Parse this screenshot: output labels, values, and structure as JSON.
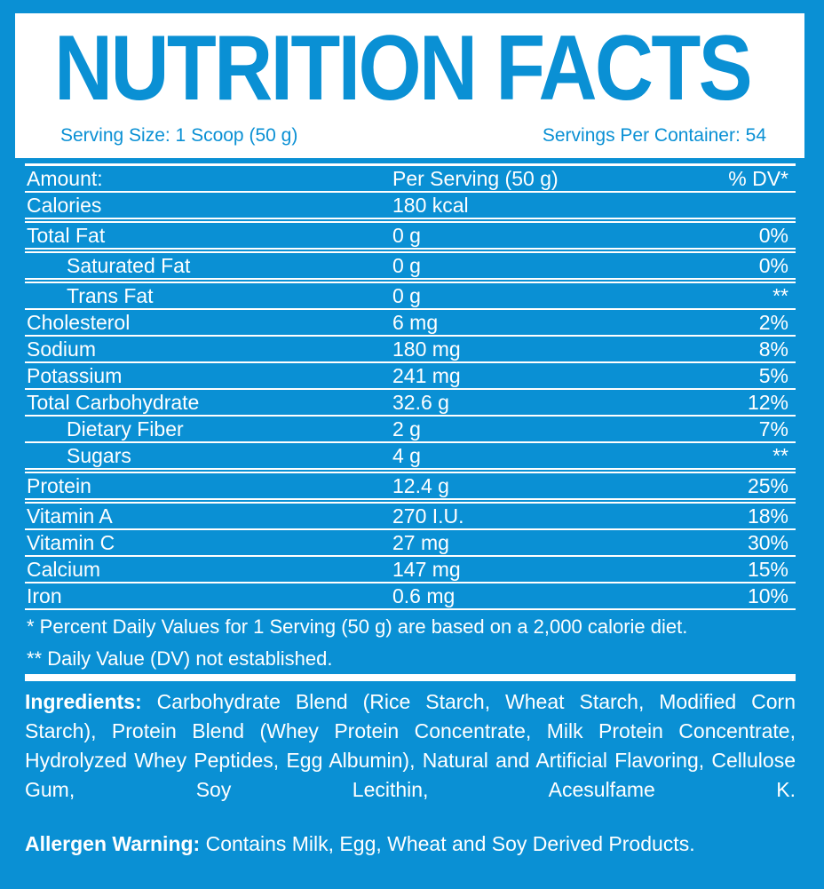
{
  "colors": {
    "background_blue": "#0a90d4",
    "panel_white": "#ffffff",
    "accent_text_blue": "#0a90d4",
    "table_text_white": "#ffffff"
  },
  "header": {
    "title": "NUTRITION FACTS",
    "serving_size": "Serving Size: 1 Scoop (50 g)",
    "servings_per_container": "Servings Per Container: 54"
  },
  "table": {
    "header": {
      "amount": "Amount:",
      "per_serving": "Per Serving (50 g)",
      "dv": "% DV*"
    },
    "rows": [
      {
        "label": "Calories",
        "value": "180 kcal",
        "dv": "",
        "indent": false,
        "group_end": true
      },
      {
        "label": "Total Fat",
        "value": "0 g",
        "dv": "0%",
        "indent": false,
        "group_end": true
      },
      {
        "label": "Saturated Fat",
        "value": "0 g",
        "dv": "0%",
        "indent": true,
        "group_end": true
      },
      {
        "label": "Trans Fat",
        "value": "0 g",
        "dv": "**",
        "indent": true,
        "group_end": false
      },
      {
        "label": "Cholesterol",
        "value": "6 mg",
        "dv": "2%",
        "indent": false,
        "group_end": false
      },
      {
        "label": "Sodium",
        "value": "180 mg",
        "dv": "8%",
        "indent": false,
        "group_end": false
      },
      {
        "label": "Potassium",
        "value": "241 mg",
        "dv": "5%",
        "indent": false,
        "group_end": false
      },
      {
        "label": "Total Carbohydrate",
        "value": "32.6 g",
        "dv": "12%",
        "indent": false,
        "group_end": false
      },
      {
        "label": "Dietary Fiber",
        "value": "2 g",
        "dv": "7%",
        "indent": true,
        "group_end": false
      },
      {
        "label": "Sugars",
        "value": "4 g",
        "dv": "**",
        "indent": true,
        "group_end": true
      },
      {
        "label": "Protein",
        "value": "12.4 g",
        "dv": "25%",
        "indent": false,
        "group_end": true
      },
      {
        "label": "Vitamin A",
        "value": "270 I.U.",
        "dv": "18%",
        "indent": false,
        "group_end": false
      },
      {
        "label": "Vitamin C",
        "value": "27 mg",
        "dv": "30%",
        "indent": false,
        "group_end": false
      },
      {
        "label": "Calcium",
        "value": "147 mg",
        "dv": "15%",
        "indent": false,
        "group_end": false
      },
      {
        "label": "Iron",
        "value": "0.6 mg",
        "dv": "10%",
        "indent": false,
        "group_end": false
      }
    ]
  },
  "footnotes": {
    "dv_note": "* Percent Daily Values for 1 Serving (50 g) are based on a 2,000 calorie diet.",
    "not_established_note": "** Daily Value (DV) not established."
  },
  "ingredients": {
    "label": "Ingredients:",
    "text": "Carbohydrate Blend (Rice Starch, Wheat Starch, Modified Corn Starch), Protein Blend (Whey Protein Concentrate, Milk Protein Concentrate, Hydrolyzed Whey Peptides, Egg Albumin), Natural and Artificial Flavoring, Cellulose Gum, Soy Lecithin, Acesulfame K."
  },
  "allergen": {
    "label": "Allergen Warning:",
    "text": "Contains Milk, Egg, Wheat and Soy Derived Products."
  }
}
